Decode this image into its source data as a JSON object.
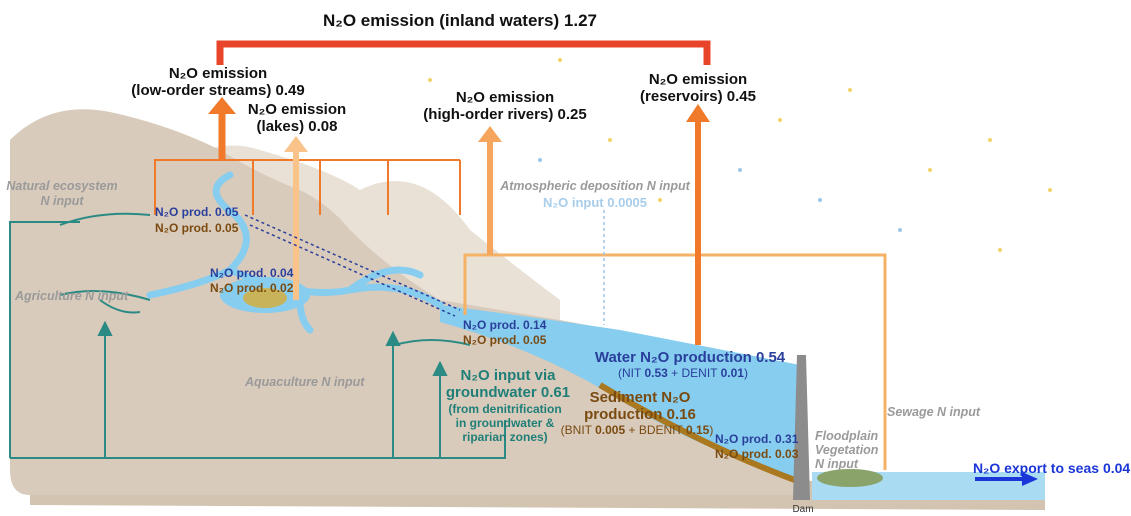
{
  "emissions": {
    "total": {
      "label": "N₂O emission (inland waters)",
      "value": "1.27"
    },
    "low_order": {
      "line1": "N₂O emission",
      "line2": "(low-order streams)",
      "value": "0.49"
    },
    "lakes": {
      "line1": "N₂O emission",
      "line2": "(lakes)",
      "value": "0.08"
    },
    "high_order": {
      "line1": "N₂O emission",
      "line2": "(high-order rivers)",
      "value": "0.25"
    },
    "reservoirs": {
      "line1": "N₂O emission",
      "line2": "(reservoirs)",
      "value": "0.45"
    }
  },
  "inputs": {
    "natural": [
      "Natural ecosystem",
      "N input"
    ],
    "agriculture": "Agriculture N input",
    "aquaculture": "Aquaculture N input",
    "atmospheric": "Atmospheric deposition N input",
    "atmospheric_n2o": {
      "label": "N₂O input",
      "value": "0.0005"
    },
    "sewage": "Sewage N input",
    "floodplain": [
      "Floodplain",
      "Vegetation",
      "N input"
    ]
  },
  "productions": {
    "streams": {
      "water": {
        "label": "N₂O prod.",
        "value": "0.05"
      },
      "sediment": {
        "label": "N₂O prod.",
        "value": "0.05"
      }
    },
    "lakes": {
      "water": {
        "label": "N₂O prod.",
        "value": "0.04"
      },
      "sediment": {
        "label": "N₂O prod.",
        "value": "0.02"
      }
    },
    "rivers": {
      "water": {
        "label": "N₂O prod.",
        "value": "0.14"
      },
      "sediment": {
        "label": "N₂O prod.",
        "value": "0.05"
      }
    },
    "reservoir_bottom": {
      "water": {
        "label": "N₂O prod.",
        "value": "0.31"
      },
      "sediment": {
        "label": "N₂O prod.",
        "value": "0.03"
      }
    }
  },
  "groundwater": {
    "lines": [
      "N₂O input via",
      "groundwater"
    ],
    "value": "0.61",
    "detail": [
      "(from denitrification",
      "in groundwater &",
      "riparian zones)"
    ]
  },
  "water_production": {
    "label": "Water N₂O production",
    "value": "0.54",
    "detail": {
      "open": "(NIT",
      "nit": "0.53",
      "mid": "+ DENIT",
      "denit": "0.01",
      "close": ")"
    }
  },
  "sediment_production": {
    "lines": [
      "Sediment N₂O",
      "production"
    ],
    "value": "0.16",
    "detail": {
      "open": "(BNIT",
      "bnit": "0.005",
      "mid": "+ BDENIT",
      "bdenit": "0.15",
      "close": ")"
    }
  },
  "export": {
    "label": "N₂O export to seas",
    "value": "0.04"
  },
  "dam": "Dam"
}
